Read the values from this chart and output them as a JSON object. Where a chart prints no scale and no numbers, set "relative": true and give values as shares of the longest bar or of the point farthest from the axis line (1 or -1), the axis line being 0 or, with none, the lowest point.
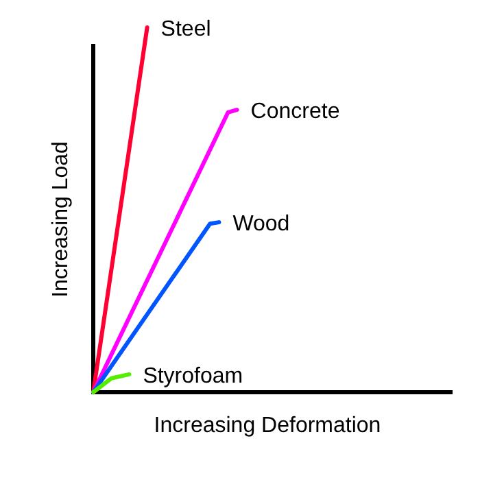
{
  "chart_data": {
    "type": "line",
    "relative": true,
    "xlabel": "Increasing Deformation",
    "ylabel": "Increasing Load",
    "categories": [
      null,
      null,
      null,
      null,
      null,
      null,
      null,
      null,
      null,
      null,
      null,
      null,
      null,
      null,
      null,
      null,
      null,
      null,
      null,
      null,
      null,
      null,
      null,
      null,
      null,
      null,
      null,
      null,
      null,
      null,
      null,
      null,
      null,
      null,
      null,
      null,
      null,
      null,
      null,
      null,
      null
    ],
    "series": [
      {
        "name": "Steel",
        "color": "#ff0033",
        "values": [
          0,
          null,
          null,
          null,
          null,
          null,
          1,
          null,
          null,
          null,
          null,
          null,
          null,
          null,
          null,
          null,
          null,
          null,
          null,
          null,
          null,
          null,
          null,
          null,
          null,
          null,
          null,
          null,
          null,
          null,
          null,
          null,
          null,
          null,
          null,
          null,
          null,
          null,
          null,
          null,
          null
        ]
      },
      {
        "name": "Concrete",
        "color": "#ff00ff",
        "values": [
          0,
          null,
          null,
          null,
          null,
          null,
          null,
          null,
          null,
          null,
          null,
          null,
          null,
          null,
          null,
          0.767,
          0.774,
          null,
          null,
          null,
          null,
          null,
          null,
          null,
          null,
          null,
          null,
          null,
          null,
          null,
          null,
          null,
          null,
          null,
          null,
          null,
          null,
          null,
          null,
          null,
          null
        ]
      },
      {
        "name": "Wood",
        "color": "#0055ff",
        "values": [
          0,
          null,
          null,
          null,
          null,
          null,
          null,
          null,
          null,
          null,
          null,
          null,
          null,
          0.462,
          0.466,
          null,
          null,
          null,
          null,
          null,
          null,
          null,
          null,
          null,
          null,
          null,
          null,
          null,
          null,
          null,
          null,
          null,
          null,
          null,
          null,
          null,
          null,
          null,
          null,
          null,
          null
        ]
      },
      {
        "name": "Styrofoam",
        "color": "#55ee00",
        "values": [
          0,
          null,
          0.038,
          null,
          0.049,
          null,
          null,
          null,
          null,
          null,
          null,
          null,
          null,
          null,
          null,
          null,
          null,
          null,
          null,
          null,
          null,
          null,
          null,
          null,
          null,
          null,
          null,
          null,
          null,
          null,
          null,
          null,
          null,
          null,
          null,
          null,
          null,
          null,
          null,
          null,
          null
        ]
      }
    ]
  }
}
